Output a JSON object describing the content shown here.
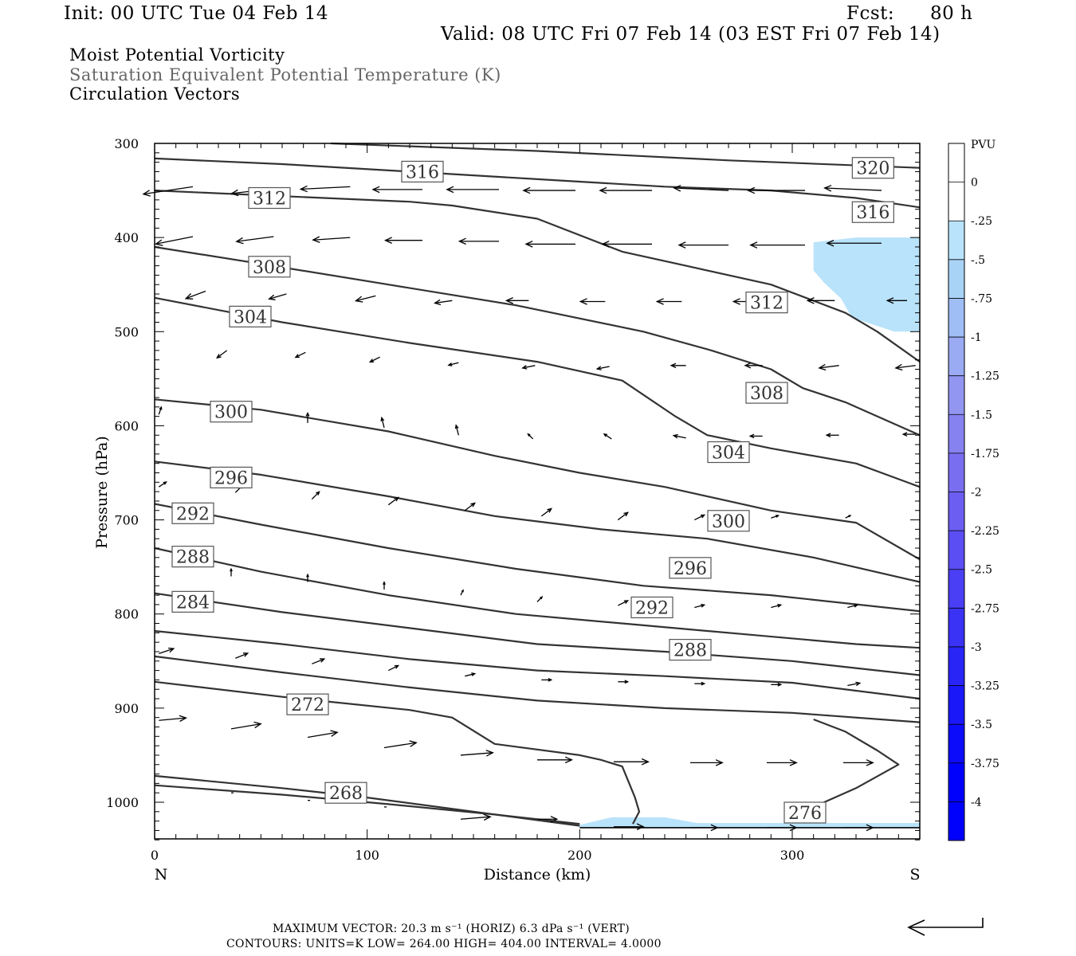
{
  "header": {
    "init": "Init: 00 UTC Tue 04 Feb 14",
    "fcst_label": "Fcst:",
    "fcst_value": "80 h",
    "valid": "Valid: 08 UTC Fri 07 Feb 14 (03 EST Fri 07 Feb 14)"
  },
  "legend_lines": {
    "pv": "Moist Potential Vorticity",
    "theta": "Saturation Equivalent Potential Temperature (K)",
    "vectors": "Circulation Vectors"
  },
  "colors": {
    "contour": "#333333",
    "theta_text": "#666666",
    "pv_shade": "#b9e3fa",
    "pv_colorbar": [
      "#ffffff",
      "#ffffff",
      "#b9e3fa",
      "#a9d2f7",
      "#9fbef5",
      "#9aaaf3",
      "#9296f1",
      "#8682ef",
      "#7a6ef0",
      "#6c5ef1",
      "#5b4ef2",
      "#4a3ff4",
      "#3a32f5",
      "#2925f7",
      "#1a18f9",
      "#0c0cfb",
      "#0000fd"
    ]
  },
  "footer": {
    "line1": "MAXIMUM VECTOR:  20.3 m s⁻¹ (HORIZ)          6.3 dPa s⁻¹ (VERT)",
    "line2": "CONTOURS:  UNITS=K  LOW=  264.00       HIGH=  404.00       INTERVAL=    4.0000"
  },
  "chart_data": {
    "type": "cross-section",
    "xlabel": "Distance (km)",
    "ylabel": "Pressure (hPa)",
    "x_ticks": [
      "0",
      "100",
      "200",
      "300"
    ],
    "x_tick_values": [
      0,
      100,
      200,
      300
    ],
    "y_ticks": [
      "300",
      "400",
      "500",
      "600",
      "700",
      "800",
      "900",
      "1000"
    ],
    "y_tick_values": [
      300,
      400,
      500,
      600,
      700,
      800,
      900,
      1000
    ],
    "xlim": [
      0,
      360
    ],
    "ylim": [
      300,
      1040
    ],
    "left_end": "N",
    "right_end": "S",
    "colorbar": {
      "title": "PVU",
      "labels": [
        "0",
        "-.25",
        "-.5",
        "-.75",
        "-1",
        "-1.25",
        "-1.5",
        "-1.75",
        "-2",
        "-2.25",
        "-2.5",
        "-2.75",
        "-3",
        "-3.25",
        "-3.5",
        "-3.75",
        "-4"
      ],
      "values": [
        0,
        -0.25,
        -0.5,
        -0.75,
        -1,
        -1.25,
        -1.5,
        -1.75,
        -2,
        -2.25,
        -2.5,
        -2.75,
        -3,
        -3.25,
        -3.5,
        -3.75,
        -4
      ]
    },
    "contour_labels": [
      {
        "text": "316",
        "x": 126,
        "p": 330
      },
      {
        "text": "320",
        "x": 338,
        "p": 326
      },
      {
        "text": "312",
        "x": 54,
        "p": 358
      },
      {
        "text": "316",
        "x": 338,
        "p": 373
      },
      {
        "text": "308",
        "x": 54,
        "p": 431
      },
      {
        "text": "312",
        "x": 288,
        "p": 469
      },
      {
        "text": "304",
        "x": 45,
        "p": 484
      },
      {
        "text": "308",
        "x": 288,
        "p": 565
      },
      {
        "text": "300",
        "x": 36,
        "p": 585
      },
      {
        "text": "304",
        "x": 270,
        "p": 628
      },
      {
        "text": "296",
        "x": 36,
        "p": 655
      },
      {
        "text": "292",
        "x": 18,
        "p": 693
      },
      {
        "text": "300",
        "x": 270,
        "p": 701
      },
      {
        "text": "288",
        "x": 18,
        "p": 739
      },
      {
        "text": "296",
        "x": 252,
        "p": 751
      },
      {
        "text": "284",
        "x": 18,
        "p": 787
      },
      {
        "text": "292",
        "x": 234,
        "p": 793
      },
      {
        "text": "288",
        "x": 252,
        "p": 838
      },
      {
        "text": "272",
        "x": 72,
        "p": 896
      },
      {
        "text": "268",
        "x": 90,
        "p": 990
      },
      {
        "text": "276",
        "x": 306,
        "p": 1011
      }
    ],
    "contours": [
      [
        [
          83,
          300
        ],
        [
          180,
          308
        ],
        [
          270,
          318
        ],
        [
          360,
          326
        ]
      ],
      [
        [
          0,
          316
        ],
        [
          60,
          322
        ],
        [
          120,
          330
        ],
        [
          180,
          338
        ],
        [
          240,
          346
        ],
        [
          290,
          350
        ],
        [
          330,
          358
        ],
        [
          360,
          368
        ]
      ],
      [
        [
          0,
          350
        ],
        [
          60,
          356
        ],
        [
          120,
          362
        ],
        [
          140,
          366
        ],
        [
          180,
          380
        ],
        [
          220,
          415
        ],
        [
          250,
          430
        ],
        [
          290,
          450
        ],
        [
          325,
          480
        ],
        [
          340,
          500
        ],
        [
          360,
          532
        ]
      ],
      [
        [
          0,
          410
        ],
        [
          50,
          428
        ],
        [
          110,
          450
        ],
        [
          170,
          472
        ],
        [
          230,
          500
        ],
        [
          262,
          520
        ],
        [
          290,
          540
        ],
        [
          305,
          560
        ],
        [
          325,
          575
        ],
        [
          360,
          610
        ]
      ],
      [
        [
          0,
          464
        ],
        [
          60,
          490
        ],
        [
          120,
          512
        ],
        [
          180,
          532
        ],
        [
          220,
          552
        ],
        [
          245,
          590
        ],
        [
          260,
          610
        ],
        [
          290,
          624
        ],
        [
          330,
          640
        ],
        [
          360,
          665
        ]
      ],
      [
        [
          0,
          572
        ],
        [
          50,
          583
        ],
        [
          110,
          606
        ],
        [
          160,
          632
        ],
        [
          200,
          650
        ],
        [
          240,
          665
        ],
        [
          290,
          690
        ],
        [
          330,
          703
        ],
        [
          360,
          742
        ]
      ],
      [
        [
          0,
          638
        ],
        [
          50,
          652
        ],
        [
          110,
          675
        ],
        [
          160,
          696
        ],
        [
          210,
          710
        ],
        [
          260,
          720
        ],
        [
          310,
          740
        ],
        [
          360,
          766
        ]
      ],
      [
        [
          0,
          683
        ],
        [
          50,
          705
        ],
        [
          110,
          730
        ],
        [
          170,
          752
        ],
        [
          230,
          770
        ],
        [
          290,
          780
        ],
        [
          360,
          797
        ]
      ],
      [
        [
          0,
          730
        ],
        [
          50,
          755
        ],
        [
          110,
          780
        ],
        [
          170,
          800
        ],
        [
          230,
          812
        ],
        [
          280,
          822
        ],
        [
          330,
          832
        ],
        [
          360,
          836
        ]
      ],
      [
        [
          0,
          778
        ],
        [
          60,
          798
        ],
        [
          120,
          815
        ],
        [
          180,
          832
        ],
        [
          240,
          840
        ],
        [
          300,
          850
        ],
        [
          360,
          865
        ]
      ],
      [
        [
          0,
          818
        ],
        [
          60,
          832
        ],
        [
          120,
          848
        ],
        [
          180,
          860
        ],
        [
          240,
          866
        ],
        [
          300,
          873
        ],
        [
          360,
          890
        ]
      ],
      [
        [
          0,
          845
        ],
        [
          60,
          862
        ],
        [
          120,
          878
        ],
        [
          180,
          892
        ],
        [
          240,
          900
        ],
        [
          300,
          905
        ],
        [
          360,
          915
        ]
      ],
      [
        [
          0,
          872
        ],
        [
          60,
          888
        ],
        [
          120,
          902
        ],
        [
          140,
          910
        ],
        [
          160,
          938
        ],
        [
          200,
          950
        ],
        [
          210,
          955
        ],
        [
          220,
          962
        ],
        [
          226,
          995
        ],
        [
          228,
          1010
        ],
        [
          225,
          1023
        ]
      ],
      [
        [
          0,
          972
        ],
        [
          60,
          985
        ],
        [
          100,
          995
        ],
        [
          150,
          1010
        ],
        [
          190,
          1022
        ],
        [
          200,
          1025
        ]
      ],
      [
        [
          0,
          982
        ],
        [
          60,
          992
        ],
        [
          110,
          1002
        ],
        [
          160,
          1013
        ],
        [
          200,
          1023
        ]
      ],
      [
        [
          300,
          1022
        ],
        [
          315,
          1000
        ],
        [
          330,
          985
        ],
        [
          350,
          960
        ],
        [
          340,
          945
        ],
        [
          325,
          925
        ],
        [
          310,
          912
        ]
      ]
    ],
    "pv_regions": [
      {
        "label": "-.25",
        "points": [
          [
            310,
            405
          ],
          [
            330,
            400
          ],
          [
            360,
            400
          ],
          [
            360,
            500
          ],
          [
            348,
            500
          ],
          [
            328,
            485
          ],
          [
            323,
            465
          ],
          [
            315,
            448
          ],
          [
            310,
            435
          ]
        ]
      },
      {
        "label": "-.25",
        "points": [
          [
            200,
            1024
          ],
          [
            215,
            1016
          ],
          [
            240,
            1016
          ],
          [
            255,
            1022
          ],
          [
            280,
            1022
          ],
          [
            360,
            1022
          ],
          [
            360,
            1027
          ],
          [
            200,
            1027
          ]
        ]
      }
    ],
    "vectors": [
      {
        "x": 18,
        "p": 346,
        "u": -20,
        "w": 3
      },
      {
        "x": 56,
        "p": 348,
        "u": -17,
        "w": 2
      },
      {
        "x": 92,
        "p": 346,
        "u": -20,
        "w": 1
      },
      {
        "x": 126,
        "p": 349,
        "u": -20,
        "w": 0
      },
      {
        "x": 162,
        "p": 349,
        "u": -21,
        "w": 0
      },
      {
        "x": 198,
        "p": 350,
        "u": -21,
        "w": 0
      },
      {
        "x": 234,
        "p": 350,
        "u": -21,
        "w": 0
      },
      {
        "x": 270,
        "p": 350,
        "u": -22,
        "w": -1
      },
      {
        "x": 306,
        "p": 350,
        "u": -23,
        "w": 0
      },
      {
        "x": 342,
        "p": 350,
        "u": -23,
        "w": -1
      },
      {
        "x": 18,
        "p": 399,
        "u": -15,
        "w": 3
      },
      {
        "x": 56,
        "p": 399,
        "u": -15,
        "w": 2
      },
      {
        "x": 92,
        "p": 400,
        "u": -15,
        "w": 1
      },
      {
        "x": 126,
        "p": 403,
        "u": -15,
        "w": 0
      },
      {
        "x": 162,
        "p": 404,
        "u": -16,
        "w": 0
      },
      {
        "x": 198,
        "p": 407,
        "u": -20,
        "w": 0
      },
      {
        "x": 234,
        "p": 407,
        "u": -20,
        "w": 0
      },
      {
        "x": 270,
        "p": 408,
        "u": -20,
        "w": 0
      },
      {
        "x": 306,
        "p": 408,
        "u": -22,
        "w": 0
      },
      {
        "x": 342,
        "p": 406,
        "u": -22,
        "w": 0
      },
      {
        "x": 24,
        "p": 457,
        "u": -8,
        "w": 3
      },
      {
        "x": 62,
        "p": 460,
        "u": -7,
        "w": 2
      },
      {
        "x": 104,
        "p": 462,
        "u": -8,
        "w": 2
      },
      {
        "x": 140,
        "p": 467,
        "u": -7,
        "w": 1
      },
      {
        "x": 176,
        "p": 467,
        "u": -9,
        "w": 0
      },
      {
        "x": 212,
        "p": 468,
        "u": -10,
        "w": 0
      },
      {
        "x": 248,
        "p": 468,
        "u": -10,
        "w": 0
      },
      {
        "x": 284,
        "p": 468,
        "u": -10,
        "w": 0
      },
      {
        "x": 320,
        "p": 467,
        "u": -11,
        "w": 0
      },
      {
        "x": 354,
        "p": 467,
        "u": -8,
        "w": 0
      },
      {
        "x": 34,
        "p": 520,
        "u": -4,
        "w": 3
      },
      {
        "x": 71,
        "p": 522,
        "u": -4,
        "w": 2
      },
      {
        "x": 106,
        "p": 527,
        "u": -4,
        "w": 2
      },
      {
        "x": 143,
        "p": 533,
        "u": -4,
        "w": 1
      },
      {
        "x": 179,
        "p": 536,
        "u": -5,
        "w": 1
      },
      {
        "x": 214,
        "p": 537,
        "u": -5,
        "w": 1
      },
      {
        "x": 250,
        "p": 536,
        "u": -6,
        "w": 0
      },
      {
        "x": 286,
        "p": 536,
        "u": -7,
        "w": 0
      },
      {
        "x": 322,
        "p": 536,
        "u": -8,
        "w": 1
      },
      {
        "x": 358,
        "p": 536,
        "u": -8,
        "w": 1
      },
      {
        "x": 2,
        "p": 588,
        "u": 1,
        "w": -3
      },
      {
        "x": 36,
        "p": 596,
        "u": 0,
        "w": -4
      },
      {
        "x": 72,
        "p": 597,
        "u": 0,
        "w": -4
      },
      {
        "x": 108,
        "p": 602,
        "u": -1,
        "w": -4
      },
      {
        "x": 143,
        "p": 610,
        "u": -1,
        "w": -4
      },
      {
        "x": 178,
        "p": 614,
        "u": -2,
        "w": -2
      },
      {
        "x": 215,
        "p": 614,
        "u": -3,
        "w": -2
      },
      {
        "x": 250,
        "p": 613,
        "u": -5,
        "w": -1
      },
      {
        "x": 286,
        "p": 611,
        "u": -5,
        "w": 0
      },
      {
        "x": 322,
        "p": 610,
        "u": -5,
        "w": 0
      },
      {
        "x": 358,
        "p": 609,
        "u": -5,
        "w": 0
      },
      {
        "x": 2,
        "p": 665,
        "u": 3,
        "w": -2
      },
      {
        "x": 38,
        "p": 671,
        "u": 3,
        "w": -3
      },
      {
        "x": 74,
        "p": 678,
        "u": 3,
        "w": -3
      },
      {
        "x": 110,
        "p": 684,
        "u": 4,
        "w": -3
      },
      {
        "x": 146,
        "p": 690,
        "u": 4,
        "w": -3
      },
      {
        "x": 182,
        "p": 696,
        "u": 4,
        "w": -3
      },
      {
        "x": 218,
        "p": 700,
        "u": 4,
        "w": -3
      },
      {
        "x": 254,
        "p": 700,
        "u": 4,
        "w": -2
      },
      {
        "x": 290,
        "p": 698,
        "u": 3,
        "w": -1
      },
      {
        "x": 325,
        "p": 698,
        "u": 2,
        "w": -1
      },
      {
        "x": 36,
        "p": 760,
        "u": 0,
        "w": -3
      },
      {
        "x": 72,
        "p": 766,
        "u": 0,
        "w": -3
      },
      {
        "x": 108,
        "p": 774,
        "u": 0,
        "w": -3
      },
      {
        "x": 144,
        "p": 780,
        "u": 1,
        "w": -2
      },
      {
        "x": 180,
        "p": 787,
        "u": 2,
        "w": -2
      },
      {
        "x": 218,
        "p": 791,
        "u": 4,
        "w": -2
      },
      {
        "x": 254,
        "p": 793,
        "u": 4,
        "w": -1
      },
      {
        "x": 290,
        "p": 793,
        "u": 4,
        "w": -1
      },
      {
        "x": 326,
        "p": 793,
        "u": 4,
        "w": -1
      },
      {
        "x": 2,
        "p": 842,
        "u": 6,
        "w": -2
      },
      {
        "x": 38,
        "p": 847,
        "u": 5,
        "w": -2
      },
      {
        "x": 74,
        "p": 853,
        "u": 5,
        "w": -2
      },
      {
        "x": 110,
        "p": 860,
        "u": 4,
        "w": -2
      },
      {
        "x": 146,
        "p": 866,
        "u": 4,
        "w": -1
      },
      {
        "x": 182,
        "p": 870,
        "u": 4,
        "w": 0
      },
      {
        "x": 218,
        "p": 872,
        "u": 4,
        "w": 0
      },
      {
        "x": 254,
        "p": 874,
        "u": 4,
        "w": 0
      },
      {
        "x": 290,
        "p": 875,
        "u": 4,
        "w": 0
      },
      {
        "x": 326,
        "p": 876,
        "u": 5,
        "w": -1
      },
      {
        "x": 2,
        "p": 913,
        "u": 11,
        "w": -1
      },
      {
        "x": 36,
        "p": 922,
        "u": 12,
        "w": -2
      },
      {
        "x": 72,
        "p": 931,
        "u": 12,
        "w": -2
      },
      {
        "x": 108,
        "p": 942,
        "u": 13,
        "w": -2
      },
      {
        "x": 144,
        "p": 950,
        "u": 13,
        "w": -1
      },
      {
        "x": 180,
        "p": 955,
        "u": 14,
        "w": 0
      },
      {
        "x": 216,
        "p": 957,
        "u": 14,
        "w": 0
      },
      {
        "x": 252,
        "p": 958,
        "u": 13,
        "w": 0
      },
      {
        "x": 288,
        "p": 958,
        "u": 12,
        "w": 0
      },
      {
        "x": 324,
        "p": 958,
        "u": 12,
        "w": 0
      },
      {
        "x": 36,
        "p": 990,
        "u": 1,
        "w": 0
      },
      {
        "x": 72,
        "p": 998,
        "u": 1,
        "w": 0
      },
      {
        "x": 108,
        "p": 1005,
        "u": 1,
        "w": 0
      },
      {
        "x": 144,
        "p": 1018,
        "u": 12,
        "w": -1
      },
      {
        "x": 180,
        "p": 1018,
        "u": 8,
        "w": 0
      },
      {
        "x": 216,
        "p": 1026,
        "u": 12,
        "w": 0
      },
      {
        "x": 252,
        "p": 1027,
        "u": 11,
        "w": 0
      },
      {
        "x": 288,
        "p": 1027,
        "u": 12,
        "w": 0
      },
      {
        "x": 324,
        "p": 1027,
        "u": 12,
        "w": 0
      }
    ]
  }
}
